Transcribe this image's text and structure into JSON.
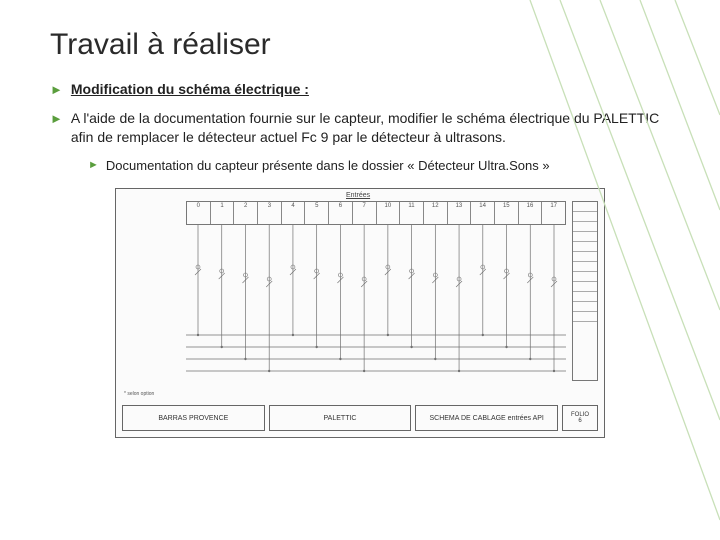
{
  "title": "Travail à réaliser",
  "bullets": {
    "b1": "Modification du schéma électrique :",
    "b2": "A l'aide de la documentation fournie sur le capteur, modifier le schéma électrique du PALETTIC afin de remplacer le détecteur actuel Fc 9 par le détecteur à ultrasons.",
    "sub1": "Documentation du capteur présente dans le dossier « Détecteur Ultra.Sons »"
  },
  "accent_color": "#5a9e3d",
  "deco_line_color": "#c8e0b8",
  "diagram": {
    "type": "schematic",
    "header_label": "Entrées",
    "top_segments": [
      "0",
      "1",
      "2",
      "3",
      "4",
      "5",
      "6",
      "7",
      "10",
      "11",
      "12",
      "13",
      "14",
      "15",
      "16",
      "17"
    ],
    "wire_count": 16,
    "bottom_panels": [
      "BARRAS PROVENCE",
      "PALETTIC",
      "SCHEMA DE CABLAGE entrées API"
    ],
    "folio_label": "FOLIO",
    "folio_num": "6",
    "left_note": "* selon option",
    "border_color": "#666666",
    "wire_color": "#707070",
    "background": "#fbfbfb"
  }
}
